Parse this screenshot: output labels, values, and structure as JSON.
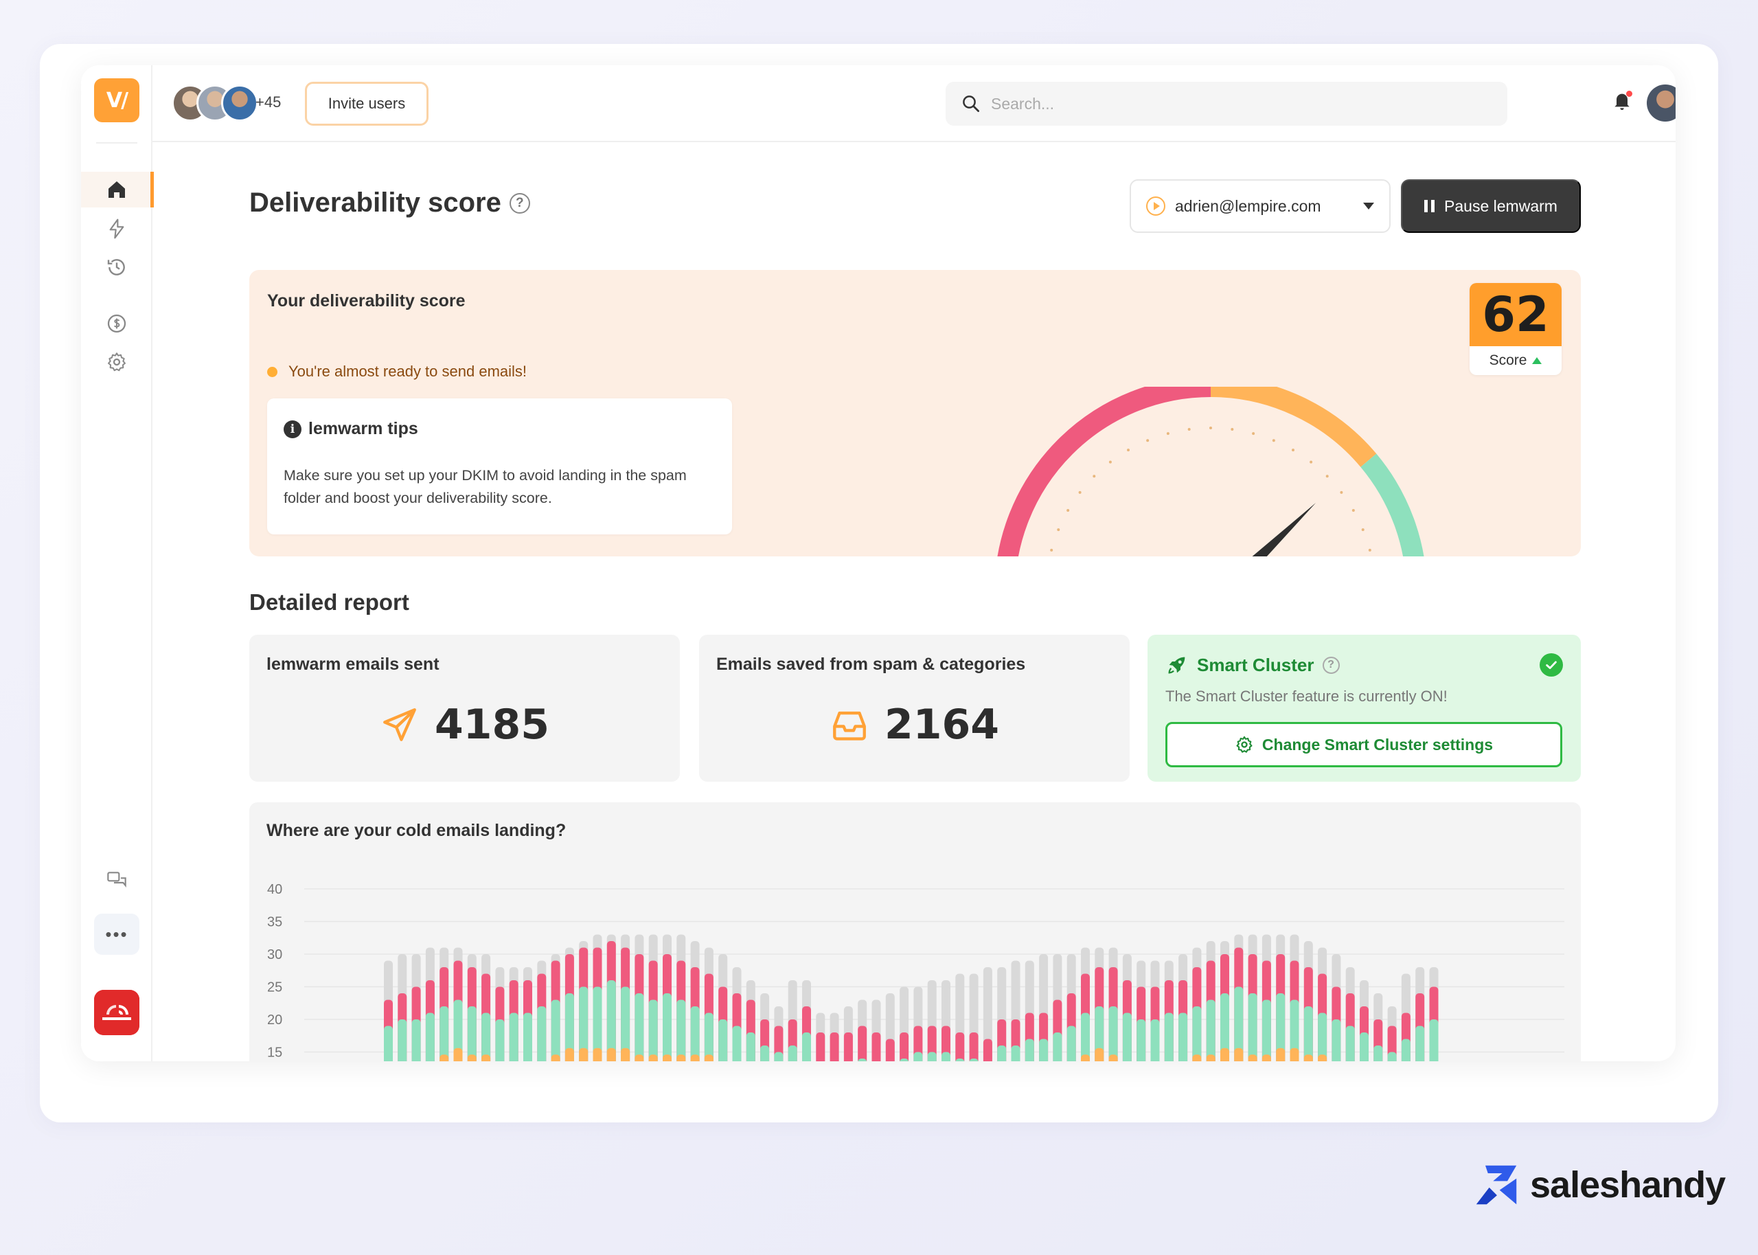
{
  "app": {
    "logo_text": "V/",
    "brand_logo_name": "the-north-face-logo"
  },
  "topbar": {
    "avatar_extra_count": "+45",
    "invite_label": "Invite users",
    "search_placeholder": "Search..."
  },
  "header": {
    "title": "Deliverability score",
    "help_glyph": "?",
    "email_selected": "adrien@lempire.com",
    "pause_label": "Pause lemwarm"
  },
  "score_card": {
    "title": "Your deliverability score",
    "status": "You're almost ready to send emails!",
    "tips_title": "lemwarm tips",
    "tips_body": "Make sure you set up your DKIM to avoid landing in the spam folder and boost your deliverability score.",
    "score": "62",
    "score_label": "Score",
    "score_fraction": 0.62,
    "colors": {
      "red": "#ef5a7e",
      "orange": "#ffb459",
      "green": "#8ee0bd"
    }
  },
  "report": {
    "title": "Detailed report",
    "sent_label": "lemwarm emails sent",
    "sent_value": "4185",
    "saved_label": "Emails saved from spam & categories",
    "saved_value": "2164",
    "cluster_title": "Smart Cluster",
    "cluster_status": "The Smart Cluster feature is currently ON!",
    "cluster_button": "Change Smart Cluster settings"
  },
  "chart": {
    "title": "Where are your cold emails landing?"
  },
  "chart_data": {
    "type": "bar",
    "stacked": true,
    "title": "Where are your cold emails landing?",
    "y_ticks": [
      "40",
      "35",
      "30",
      "25",
      "20",
      "15"
    ],
    "ylim": [
      13,
      40
    ],
    "grid": true,
    "series_colors": {
      "inbox": "#8ee0bd",
      "spam": "#ef5a7e",
      "categories": "#ffb459",
      "total": "#d9d9d9"
    },
    "bars": [
      {
        "o": 0,
        "g": 19,
        "r": 4,
        "t": 29
      },
      {
        "o": 0,
        "g": 20,
        "r": 4,
        "t": 30
      },
      {
        "o": 0,
        "g": 20,
        "r": 5,
        "t": 30
      },
      {
        "o": 0,
        "g": 21,
        "r": 5,
        "t": 31
      },
      {
        "o": 1,
        "g": 22,
        "r": 6,
        "t": 31
      },
      {
        "o": 2,
        "g": 23,
        "r": 6,
        "t": 31
      },
      {
        "o": 1,
        "g": 22,
        "r": 6,
        "t": 30
      },
      {
        "o": 1,
        "g": 21,
        "r": 6,
        "t": 30
      },
      {
        "o": 0,
        "g": 20,
        "r": 5,
        "t": 28
      },
      {
        "o": 0,
        "g": 21,
        "r": 5,
        "t": 28
      },
      {
        "o": 0,
        "g": 21,
        "r": 5,
        "t": 28
      },
      {
        "o": 0,
        "g": 22,
        "r": 5,
        "t": 29
      },
      {
        "o": 1,
        "g": 23,
        "r": 6,
        "t": 30
      },
      {
        "o": 2,
        "g": 24,
        "r": 6,
        "t": 31
      },
      {
        "o": 2,
        "g": 25,
        "r": 6,
        "t": 32
      },
      {
        "o": 2,
        "g": 25,
        "r": 6,
        "t": 33
      },
      {
        "o": 2,
        "g": 26,
        "r": 6,
        "t": 33
      },
      {
        "o": 2,
        "g": 25,
        "r": 6,
        "t": 33
      },
      {
        "o": 1,
        "g": 24,
        "r": 6,
        "t": 33
      },
      {
        "o": 1,
        "g": 23,
        "r": 6,
        "t": 33
      },
      {
        "o": 1,
        "g": 24,
        "r": 6,
        "t": 33
      },
      {
        "o": 1,
        "g": 23,
        "r": 6,
        "t": 33
      },
      {
        "o": 1,
        "g": 22,
        "r": 6,
        "t": 32
      },
      {
        "o": 1,
        "g": 21,
        "r": 6,
        "t": 31
      },
      {
        "o": 0,
        "g": 20,
        "r": 5,
        "t": 30
      },
      {
        "o": 0,
        "g": 19,
        "r": 5,
        "t": 28
      },
      {
        "o": 0,
        "g": 18,
        "r": 5,
        "t": 26
      },
      {
        "o": 0,
        "g": 16,
        "r": 4,
        "t": 24
      },
      {
        "o": 0,
        "g": 15,
        "r": 4,
        "t": 22
      },
      {
        "o": 0,
        "g": 16,
        "r": 4,
        "t": 26
      },
      {
        "o": 0,
        "g": 18,
        "r": 4,
        "t": 26
      },
      {
        "o": 0,
        "g": 13,
        "r": 5,
        "t": 21
      },
      {
        "o": 0,
        "g": 13,
        "r": 5,
        "t": 21
      },
      {
        "o": 0,
        "g": 13,
        "r": 5,
        "t": 22
      },
      {
        "o": 0,
        "g": 14,
        "r": 5,
        "t": 23
      },
      {
        "o": 0,
        "g": 13,
        "r": 5,
        "t": 23
      },
      {
        "o": 0,
        "g": 13,
        "r": 4,
        "t": 24
      },
      {
        "o": 0,
        "g": 14,
        "r": 4,
        "t": 25
      },
      {
        "o": 0,
        "g": 15,
        "r": 4,
        "t": 25
      },
      {
        "o": 0,
        "g": 15,
        "r": 4,
        "t": 26
      },
      {
        "o": 0,
        "g": 15,
        "r": 4,
        "t": 26
      },
      {
        "o": 0,
        "g": 14,
        "r": 4,
        "t": 27
      },
      {
        "o": 0,
        "g": 14,
        "r": 4,
        "t": 27
      },
      {
        "o": 0,
        "g": 13,
        "r": 4,
        "t": 28
      },
      {
        "o": 0,
        "g": 16,
        "r": 4,
        "t": 28
      },
      {
        "o": 0,
        "g": 16,
        "r": 4,
        "t": 29
      },
      {
        "o": 0,
        "g": 17,
        "r": 4,
        "t": 29
      },
      {
        "o": 0,
        "g": 17,
        "r": 4,
        "t": 30
      },
      {
        "o": 0,
        "g": 18,
        "r": 5,
        "t": 30
      },
      {
        "o": 0,
        "g": 19,
        "r": 5,
        "t": 30
      },
      {
        "o": 1,
        "g": 21,
        "r": 6,
        "t": 31
      },
      {
        "o": 2,
        "g": 22,
        "r": 6,
        "t": 31
      },
      {
        "o": 1,
        "g": 22,
        "r": 6,
        "t": 31
      },
      {
        "o": 0,
        "g": 21,
        "r": 5,
        "t": 30
      },
      {
        "o": 0,
        "g": 20,
        "r": 5,
        "t": 29
      },
      {
        "o": 0,
        "g": 20,
        "r": 5,
        "t": 29
      },
      {
        "o": 0,
        "g": 21,
        "r": 5,
        "t": 29
      },
      {
        "o": 0,
        "g": 21,
        "r": 5,
        "t": 30
      },
      {
        "o": 1,
        "g": 22,
        "r": 6,
        "t": 31
      },
      {
        "o": 1,
        "g": 23,
        "r": 6,
        "t": 32
      },
      {
        "o": 2,
        "g": 24,
        "r": 6,
        "t": 32
      },
      {
        "o": 2,
        "g": 25,
        "r": 6,
        "t": 33
      },
      {
        "o": 1,
        "g": 24,
        "r": 6,
        "t": 33
      },
      {
        "o": 1,
        "g": 23,
        "r": 6,
        "t": 33
      },
      {
        "o": 2,
        "g": 24,
        "r": 6,
        "t": 33
      },
      {
        "o": 2,
        "g": 23,
        "r": 6,
        "t": 33
      },
      {
        "o": 1,
        "g": 22,
        "r": 6,
        "t": 32
      },
      {
        "o": 1,
        "g": 21,
        "r": 6,
        "t": 31
      },
      {
        "o": 0,
        "g": 20,
        "r": 5,
        "t": 30
      },
      {
        "o": 0,
        "g": 19,
        "r": 5,
        "t": 28
      },
      {
        "o": 0,
        "g": 18,
        "r": 4,
        "t": 26
      },
      {
        "o": 0,
        "g": 16,
        "r": 4,
        "t": 24
      },
      {
        "o": 0,
        "g": 15,
        "r": 4,
        "t": 22
      },
      {
        "o": 0,
        "g": 17,
        "r": 4,
        "t": 27
      },
      {
        "o": 0,
        "g": 19,
        "r": 5,
        "t": 28
      },
      {
        "o": 0,
        "g": 20,
        "r": 5,
        "t": 28
      }
    ]
  }
}
